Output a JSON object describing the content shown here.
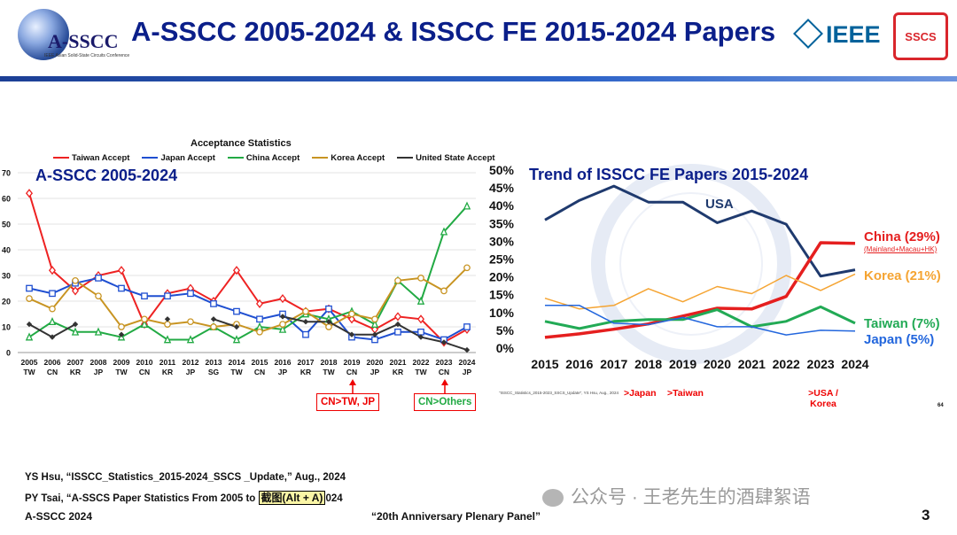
{
  "header": {
    "title": "A-SSCC 2005-2024 & ISSCC FE 2015-2024 Papers",
    "logo_text": "A-SSCC",
    "logo_subtitle": "IEEE Asian Solid-State Circuits Conference",
    "ieee_text": "IEEE",
    "sscs_text": "SSCS"
  },
  "left_panel": {
    "label": "A-SSCC 2005-2024",
    "callouts": [
      "CN>TW, JP",
      "CN>Others"
    ]
  },
  "right_panel": {
    "label": "Trend of ISSCC FE Papers 2015-2024",
    "source_note": "\"ISSCC_Statistics_2015-2023_SSCS_Update\", YS Hsu, Aug., 2024",
    "page_num": "64",
    "annotations": [
      ">Japan",
      ">Taiwan",
      ">USA / Korea"
    ]
  },
  "footer": {
    "ref1": "YS Hsu, “ISSCC_Statistics_2015-2024_SSCS _Update,” Aug., 2024",
    "ref2_start": "PY Tsai, “A-SSCS Paper Statistics From 2005 to",
    "ref2_end": "024",
    "screenshot_hint": "截图(Alt + A)",
    "conference": "A-SSCC 2024",
    "panel_name": "“20th Anniversary Plenary Panel”",
    "page_number": "3",
    "watermark": "公众号 · 王老先生的酒肆絮语"
  },
  "chart_data": [
    {
      "type": "line",
      "title": "Acceptance Statistics",
      "categories": [
        "2005",
        "2006",
        "2007",
        "2008",
        "2009",
        "2010",
        "2011",
        "2012",
        "2013",
        "2014",
        "2015",
        "2016",
        "2017",
        "2018",
        "2019",
        "2020",
        "2021",
        "2022",
        "2023",
        "2024"
      ],
      "sub_categories": [
        "TW",
        "CN",
        "KR",
        "JP",
        "TW",
        "CN",
        "KR",
        "JP",
        "SG",
        "TW",
        "CN",
        "JP",
        "KR",
        "TW",
        "CN",
        "JP",
        "KR",
        "TW",
        "CN",
        "JP"
      ],
      "ylim": [
        0,
        70
      ],
      "yticks": [
        "0",
        "10",
        "20",
        "30",
        "40",
        "50",
        "60",
        "70"
      ],
      "series": [
        {
          "name": "Taiwan Accept",
          "color": "#ee2222",
          "marker": "diamond-open",
          "values": [
            62,
            32,
            24,
            30,
            32,
            11,
            23,
            25,
            20,
            32,
            19,
            21,
            16,
            17,
            13,
            9,
            14,
            13,
            4,
            9
          ]
        },
        {
          "name": "Japan Accept",
          "color": "#1f4fd1",
          "marker": "square-open",
          "values": [
            25,
            23,
            27,
            29,
            25,
            22,
            22,
            23,
            19,
            16,
            13,
            15,
            7,
            17,
            6,
            5,
            8,
            8,
            5,
            10
          ]
        },
        {
          "name": "China Accept",
          "color": "#22aa44",
          "marker": "triangle-open",
          "values": [
            6,
            12,
            8,
            8,
            6,
            11,
            5,
            5,
            10,
            5,
            10,
            9,
            15,
            13,
            16,
            11,
            28,
            20,
            47,
            57
          ]
        },
        {
          "name": "Korea Accept",
          "color": "#c89422",
          "marker": "circle-open",
          "values": [
            21,
            17,
            28,
            22,
            10,
            13,
            11,
            12,
            10,
            11,
            8,
            11,
            16,
            10,
            15,
            13,
            28,
            29,
            24,
            33
          ]
        },
        {
          "name": "United State Accept",
          "color": "#333333",
          "marker": "diamond-filled",
          "values": [
            11,
            6,
            11,
            null,
            7,
            null,
            13,
            null,
            13,
            10,
            null,
            14,
            12,
            12,
            7,
            7,
            11,
            6,
            4,
            1
          ]
        }
      ]
    },
    {
      "type": "line",
      "title": "Trend of ISSCC FE Papers 2015-2024",
      "x": [
        "2015",
        "2016",
        "2017",
        "2018",
        "2019",
        "2020",
        "2021",
        "2022",
        "2023",
        "2024"
      ],
      "ylim": [
        0,
        50
      ],
      "yticks": [
        "0%",
        "5%",
        "10%",
        "15%",
        "20%",
        "25%",
        "30%",
        "35%",
        "40%",
        "45%",
        "50%"
      ],
      "series": [
        {
          "name": "USA",
          "color": "#1f3a6e",
          "width": 3,
          "values": [
            36,
            41.5,
            45.5,
            41,
            41,
            35.2,
            38.5,
            34.8,
            20.2,
            22
          ]
        },
        {
          "name": "China (29%)",
          "sublabel": "(Mainland+Macau+HK)",
          "color": "#e51f1f",
          "width": 3.5,
          "values": [
            3,
            4,
            5.3,
            6.8,
            9,
            11.2,
            11,
            14.5,
            29.6,
            29.4
          ]
        },
        {
          "name": "Korea (21%)",
          "color": "#f5a432",
          "width": 1.5,
          "values": [
            14,
            11,
            12,
            16.7,
            13,
            17.3,
            15.3,
            20.4,
            16.2,
            20.8
          ]
        },
        {
          "name": "Taiwan (7%)",
          "color": "#22aa55",
          "width": 3,
          "values": [
            7.5,
            5.5,
            7.5,
            8,
            8,
            10.8,
            6,
            7.5,
            11.6,
            7
          ]
        },
        {
          "name": "Japan (5%)",
          "color": "#2266dd",
          "width": 1.5,
          "values": [
            12,
            12,
            7,
            6.6,
            8.6,
            6,
            6,
            3.7,
            5,
            4.8
          ]
        }
      ]
    }
  ]
}
